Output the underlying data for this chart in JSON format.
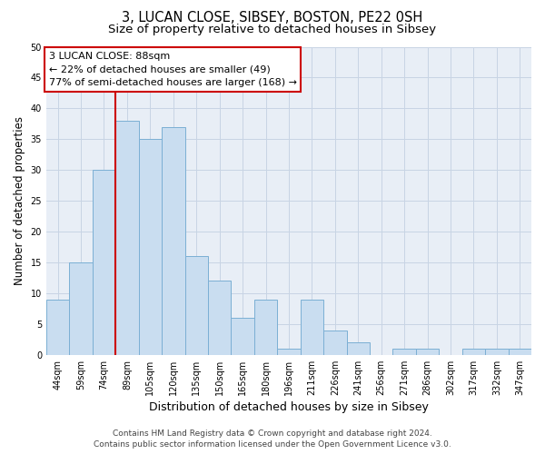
{
  "title": "3, LUCAN CLOSE, SIBSEY, BOSTON, PE22 0SH",
  "subtitle": "Size of property relative to detached houses in Sibsey",
  "xlabel": "Distribution of detached houses by size in Sibsey",
  "ylabel": "Number of detached properties",
  "categories": [
    "44sqm",
    "59sqm",
    "74sqm",
    "89sqm",
    "105sqm",
    "120sqm",
    "135sqm",
    "150sqm",
    "165sqm",
    "180sqm",
    "196sqm",
    "211sqm",
    "226sqm",
    "241sqm",
    "256sqm",
    "271sqm",
    "286sqm",
    "302sqm",
    "317sqm",
    "332sqm",
    "347sqm"
  ],
  "values": [
    9,
    15,
    30,
    38,
    35,
    37,
    16,
    12,
    6,
    9,
    1,
    9,
    4,
    2,
    0,
    1,
    1,
    0,
    1,
    1,
    1
  ],
  "bar_color": "#c9ddf0",
  "bar_edge_color": "#7bafd4",
  "vline_color": "#cc0000",
  "vline_x_index": 3,
  "annotation_line1": "3 LUCAN CLOSE: 88sqm",
  "annotation_line2": "← 22% of detached houses are smaller (49)",
  "annotation_line3": "77% of semi-detached houses are larger (168) →",
  "annotation_box_facecolor": "#ffffff",
  "annotation_box_edgecolor": "#cc0000",
  "ylim": [
    0,
    50
  ],
  "yticks": [
    0,
    5,
    10,
    15,
    20,
    25,
    30,
    35,
    40,
    45,
    50
  ],
  "grid_color": "#c8d4e4",
  "bg_color": "#e8eef6",
  "footer_line1": "Contains HM Land Registry data © Crown copyright and database right 2024.",
  "footer_line2": "Contains public sector information licensed under the Open Government Licence v3.0.",
  "title_fontsize": 10.5,
  "subtitle_fontsize": 9.5,
  "ylabel_fontsize": 8.5,
  "xlabel_fontsize": 9,
  "tick_fontsize": 7,
  "annotation_fontsize": 8,
  "footer_fontsize": 6.5
}
